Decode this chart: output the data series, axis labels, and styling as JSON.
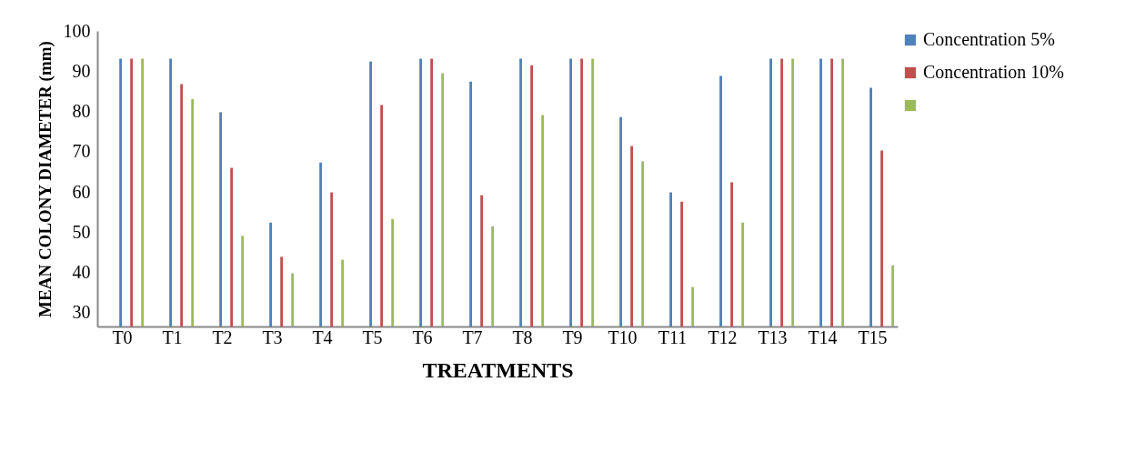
{
  "chart_data": {
    "type": "bar",
    "xlabel": "TREATMENTS",
    "ylabel": "MEAN COLONY DIAMETER (mm)",
    "categories": [
      "T0",
      "T1",
      "T2",
      "T3",
      "T4",
      "T5",
      "T6",
      "T7",
      "T8",
      "T9",
      "T10",
      "T11",
      "T12",
      "T13",
      "T14",
      "T15"
    ],
    "series": [
      {
        "name": "Concentration 5%",
        "color": "#4f81bd",
        "values": [
          93.1,
          93.1,
          79.8,
          52.4,
          67.3,
          92.4,
          93.1,
          87.4,
          93.1,
          93.1,
          78.6,
          59.9,
          88.8,
          93.1,
          93.1,
          85.9
        ]
      },
      {
        "name": "Concentration 10%",
        "color": "#c0504d",
        "values": [
          93.1,
          86.8,
          66.0,
          43.9,
          59.9,
          81.6,
          93.1,
          59.2,
          91.5,
          93.1,
          71.4,
          57.6,
          62.4,
          93.1,
          93.1,
          70.3
        ]
      },
      {
        "color": "#9bbb59",
        "values": [
          93.1,
          83.1,
          49.1,
          39.8,
          43.2,
          53.3,
          89.5,
          51.5,
          79.1,
          93.1,
          67.6,
          36.4,
          52.4,
          93.1,
          93.1,
          41.8
        ]
      }
    ],
    "ylim": [
      26.6,
      100
    ],
    "yticks": [
      30,
      40,
      50,
      60,
      70,
      80,
      90,
      100
    ],
    "grid": false,
    "legend": "right"
  }
}
